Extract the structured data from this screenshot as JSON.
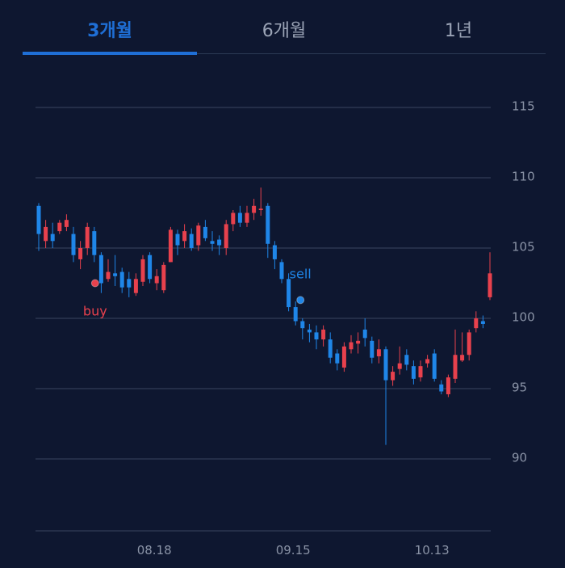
{
  "tabs": [
    {
      "label": "3개월",
      "active": true
    },
    {
      "label": "6개월",
      "active": false
    },
    {
      "label": "1년",
      "active": false
    }
  ],
  "colors": {
    "up": "#e8414d",
    "down": "#1f86e8",
    "grid": "#3a4660",
    "text": "#8a93a6",
    "accent": "#1f6fd6",
    "background": "#0e1730"
  },
  "chart_data": {
    "type": "candlestick",
    "y_ticks": [
      "115",
      "110",
      "105",
      "100",
      "95",
      "90"
    ],
    "ylim": [
      85,
      117
    ],
    "x_labels": [
      {
        "label": "08.18",
        "index": 17
      },
      {
        "label": "09.15",
        "index": 37
      },
      {
        "label": "10.13",
        "index": 57
      }
    ],
    "markers": [
      {
        "label": "buy",
        "index": 8,
        "value": 102.5,
        "color": "#e8414d"
      },
      {
        "label": "sell",
        "index": 37,
        "value": 101.3,
        "color": "#1f86e8"
      }
    ],
    "candles": [
      [
        108.0,
        106.0,
        108.2,
        104.8
      ],
      [
        105.5,
        106.5,
        107.0,
        105.0
      ],
      [
        106.0,
        105.5,
        106.8,
        105.0
      ],
      [
        106.2,
        106.8,
        107.0,
        106.0
      ],
      [
        106.5,
        107.0,
        107.4,
        106.2
      ],
      [
        106.0,
        104.5,
        106.5,
        104.0
      ],
      [
        104.2,
        105.0,
        105.5,
        103.5
      ],
      [
        105.0,
        106.5,
        106.8,
        104.5
      ],
      [
        106.2,
        104.5,
        106.5,
        104.0
      ],
      [
        104.5,
        102.5,
        104.7,
        101.8
      ],
      [
        102.8,
        103.3,
        104.2,
        102.6
      ],
      [
        103.2,
        103.0,
        104.5,
        102.3
      ],
      [
        103.3,
        102.2,
        103.6,
        101.8
      ],
      [
        102.8,
        102.2,
        103.3,
        101.5
      ],
      [
        101.8,
        102.8,
        103.2,
        101.6
      ],
      [
        102.6,
        104.2,
        104.5,
        102.3
      ],
      [
        104.5,
        102.8,
        104.7,
        102.5
      ],
      [
        102.5,
        103.0,
        103.5,
        102.0
      ],
      [
        102.0,
        103.8,
        104.0,
        101.8
      ],
      [
        104.0,
        106.3,
        106.5,
        104.0
      ],
      [
        106.0,
        105.2,
        106.3,
        104.5
      ],
      [
        105.5,
        106.2,
        106.7,
        105.0
      ],
      [
        106.0,
        105.0,
        106.4,
        104.8
      ],
      [
        105.2,
        106.6,
        106.8,
        104.8
      ],
      [
        106.5,
        105.7,
        107.0,
        105.5
      ],
      [
        105.5,
        105.3,
        106.2,
        104.8
      ],
      [
        105.6,
        105.2,
        105.9,
        104.5
      ],
      [
        105.0,
        106.7,
        107.0,
        104.5
      ],
      [
        106.7,
        107.5,
        107.7,
        106.2
      ],
      [
        107.5,
        106.8,
        108.0,
        106.5
      ],
      [
        106.8,
        107.5,
        108.0,
        106.5
      ],
      [
        107.5,
        108.0,
        108.5,
        107.0
      ],
      [
        107.7,
        107.8,
        109.3,
        107.3
      ],
      [
        108.0,
        105.3,
        108.2,
        104.3
      ],
      [
        105.2,
        104.2,
        105.5,
        103.5
      ],
      [
        104.0,
        102.8,
        104.2,
        102.5
      ],
      [
        102.8,
        100.8,
        103.2,
        100.5
      ],
      [
        100.8,
        99.8,
        101.2,
        99.5
      ],
      [
        99.8,
        99.3,
        100.0,
        98.5
      ],
      [
        99.2,
        99.0,
        99.6,
        98.3
      ],
      [
        99.0,
        98.5,
        99.5,
        97.8
      ],
      [
        98.5,
        99.2,
        99.5,
        98.0
      ],
      [
        98.5,
        97.2,
        99.0,
        96.8
      ],
      [
        97.5,
        96.8,
        97.8,
        96.3
      ],
      [
        96.5,
        98.0,
        98.3,
        96.2
      ],
      [
        97.8,
        98.3,
        98.8,
        97.5
      ],
      [
        98.2,
        98.4,
        99.0,
        97.5
      ],
      [
        99.2,
        98.6,
        100.0,
        98.0
      ],
      [
        98.4,
        97.2,
        98.7,
        96.8
      ],
      [
        97.3,
        97.8,
        98.5,
        96.8
      ],
      [
        97.8,
        95.6,
        98.0,
        91.0
      ],
      [
        95.6,
        96.2,
        96.6,
        95.2
      ],
      [
        96.4,
        96.8,
        98.0,
        96.0
      ],
      [
        97.4,
        96.7,
        97.8,
        96.3
      ],
      [
        96.6,
        95.7,
        97.0,
        95.3
      ],
      [
        95.8,
        96.6,
        97.0,
        95.5
      ],
      [
        96.8,
        97.1,
        97.4,
        96.5
      ],
      [
        97.5,
        95.7,
        97.8,
        95.5
      ],
      [
        95.3,
        94.8,
        95.6,
        94.6
      ],
      [
        94.6,
        95.8,
        96.0,
        94.4
      ],
      [
        95.7,
        97.4,
        99.2,
        95.4
      ],
      [
        97.0,
        97.4,
        99.0,
        96.9
      ],
      [
        97.4,
        99.0,
        99.2,
        97.0
      ],
      [
        99.3,
        100.0,
        100.5,
        99.0
      ],
      [
        99.8,
        99.6,
        100.2,
        99.3
      ],
      [
        101.5,
        103.2,
        104.7,
        101.3
      ]
    ]
  }
}
